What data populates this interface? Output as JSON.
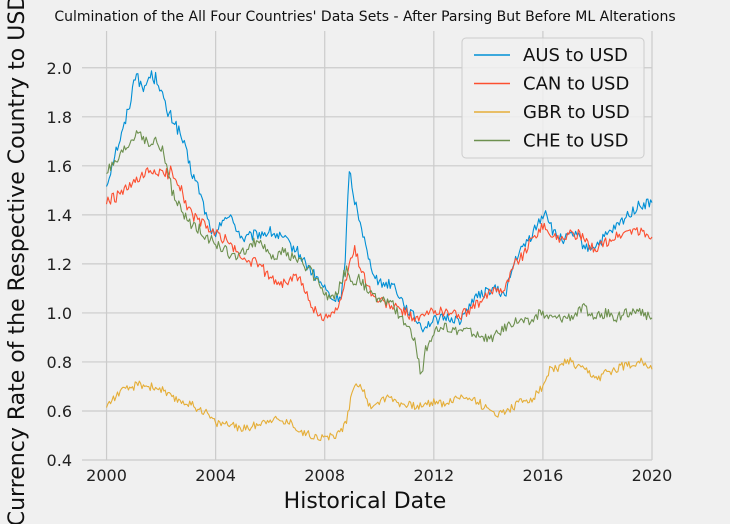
{
  "chart_data": {
    "type": "line",
    "title": "Culmination of the All Four Countries' Data Sets - After Parsing But Before ML Alterations",
    "xlabel": "Historical Date",
    "ylabel": "Currency Rate of the Respective Country to USD",
    "xlim": [
      1999.1,
      2020.0
    ],
    "ylim": [
      0.4,
      2.15
    ],
    "xticks": [
      "2000",
      "2004",
      "2008",
      "2012",
      "2016",
      "2020"
    ],
    "yticks": [
      "0.4",
      "0.6",
      "0.8",
      "1.0",
      "1.2",
      "1.4",
      "1.6",
      "1.8",
      "2.0"
    ],
    "grid": true,
    "legend_position": "top-right",
    "series": [
      {
        "name": "AUS to USD",
        "color": "#008fd5",
        "x": [
          2000.0,
          2000.3,
          2000.6,
          2000.9,
          2001.1,
          2001.3,
          2001.6,
          2001.9,
          2002.2,
          2002.5,
          2002.8,
          2003.1,
          2003.4,
          2003.7,
          2004.0,
          2004.3,
          2004.6,
          2005.0,
          2005.5,
          2006.0,
          2006.5,
          2007.0,
          2007.5,
          2008.0,
          2008.3,
          2008.6,
          2008.75,
          2008.9,
          2009.0,
          2009.3,
          2009.6,
          2010.0,
          2010.5,
          2011.0,
          2011.3,
          2011.6,
          2012.0,
          2012.5,
          2013.0,
          2013.4,
          2013.8,
          2014.2,
          2014.6,
          2015.0,
          2015.3,
          2015.6,
          2015.9,
          2016.1,
          2016.4,
          2016.8,
          2017.2,
          2017.6,
          2018.0,
          2018.4,
          2018.8,
          2019.2,
          2019.6,
          2020.0
        ],
        "values": [
          1.52,
          1.65,
          1.74,
          1.88,
          2.0,
          1.9,
          1.97,
          1.95,
          1.82,
          1.78,
          1.7,
          1.58,
          1.5,
          1.38,
          1.3,
          1.4,
          1.38,
          1.3,
          1.32,
          1.33,
          1.3,
          1.25,
          1.17,
          1.1,
          1.05,
          1.07,
          1.2,
          1.6,
          1.5,
          1.38,
          1.22,
          1.12,
          1.12,
          1.02,
          0.98,
          0.94,
          0.97,
          0.98,
          0.97,
          1.05,
          1.08,
          1.1,
          1.07,
          1.22,
          1.27,
          1.32,
          1.38,
          1.42,
          1.32,
          1.3,
          1.32,
          1.26,
          1.28,
          1.32,
          1.36,
          1.41,
          1.44,
          1.45
        ]
      },
      {
        "name": "CAN to USD",
        "color": "#fc4f30",
        "x": [
          2000.0,
          2000.3,
          2000.6,
          2000.9,
          2001.2,
          2001.5,
          2001.8,
          2002.1,
          2002.4,
          2002.7,
          2003.0,
          2003.3,
          2003.6,
          2004.0,
          2004.4,
          2004.8,
          2005.2,
          2005.6,
          2006.0,
          2006.5,
          2007.0,
          2007.4,
          2007.8,
          2008.0,
          2008.3,
          2008.6,
          2008.9,
          2009.1,
          2009.4,
          2009.8,
          2010.2,
          2010.6,
          2011.0,
          2011.4,
          2011.8,
          2012.2,
          2012.6,
          2013.0,
          2013.4,
          2013.8,
          2014.2,
          2014.6,
          2015.0,
          2015.3,
          2015.6,
          2015.9,
          2016.2,
          2016.5,
          2016.9,
          2017.3,
          2017.7,
          2018.1,
          2018.5,
          2018.9,
          2019.3,
          2019.7,
          2020.0
        ],
        "values": [
          1.45,
          1.47,
          1.49,
          1.52,
          1.54,
          1.57,
          1.58,
          1.56,
          1.58,
          1.52,
          1.42,
          1.38,
          1.36,
          1.32,
          1.3,
          1.24,
          1.21,
          1.2,
          1.14,
          1.12,
          1.15,
          1.06,
          0.98,
          0.99,
          1.0,
          1.04,
          1.2,
          1.26,
          1.16,
          1.06,
          1.04,
          1.02,
          1.0,
          0.97,
          1.0,
          1.01,
          1.0,
          0.99,
          1.02,
          1.05,
          1.1,
          1.1,
          1.21,
          1.24,
          1.3,
          1.35,
          1.34,
          1.3,
          1.32,
          1.32,
          1.27,
          1.27,
          1.3,
          1.32,
          1.34,
          1.32,
          1.31
        ]
      },
      {
        "name": "GBR to USD",
        "color": "#e5ae38",
        "x": [
          2000.0,
          2000.4,
          2000.8,
          2001.2,
          2001.6,
          2002.0,
          2002.4,
          2002.8,
          2003.2,
          2003.6,
          2004.0,
          2004.4,
          2004.8,
          2005.2,
          2005.6,
          2006.0,
          2006.4,
          2006.8,
          2007.2,
          2007.6,
          2008.0,
          2008.4,
          2008.8,
          2009.0,
          2009.3,
          2009.6,
          2010.0,
          2010.4,
          2010.8,
          2011.2,
          2011.6,
          2012.0,
          2012.4,
          2012.8,
          2013.2,
          2013.6,
          2014.0,
          2014.4,
          2014.8,
          2015.2,
          2015.6,
          2016.0,
          2016.3,
          2016.6,
          2016.9,
          2017.2,
          2017.6,
          2018.0,
          2018.4,
          2018.8,
          2019.2,
          2019.6,
          2020.0
        ],
        "values": [
          0.62,
          0.67,
          0.69,
          0.71,
          0.7,
          0.69,
          0.65,
          0.64,
          0.62,
          0.6,
          0.55,
          0.55,
          0.53,
          0.53,
          0.55,
          0.57,
          0.56,
          0.55,
          0.51,
          0.5,
          0.49,
          0.5,
          0.55,
          0.69,
          0.72,
          0.62,
          0.64,
          0.66,
          0.63,
          0.62,
          0.62,
          0.64,
          0.63,
          0.65,
          0.66,
          0.64,
          0.6,
          0.59,
          0.61,
          0.64,
          0.65,
          0.7,
          0.78,
          0.77,
          0.81,
          0.78,
          0.76,
          0.73,
          0.76,
          0.78,
          0.79,
          0.81,
          0.77
        ]
      },
      {
        "name": "CHE to USD",
        "color": "#6d904f",
        "x": [
          2000.0,
          2000.3,
          2000.6,
          2000.9,
          2001.2,
          2001.5,
          2001.8,
          2002.1,
          2002.4,
          2002.7,
          2003.0,
          2003.3,
          2003.6,
          2004.0,
          2004.4,
          2004.8,
          2005.2,
          2005.6,
          2006.0,
          2006.5,
          2007.0,
          2007.4,
          2007.8,
          2008.2,
          2008.5,
          2008.8,
          2009.0,
          2009.3,
          2009.6,
          2010.0,
          2010.4,
          2010.8,
          2011.0,
          2011.3,
          2011.55,
          2011.7,
          2012.0,
          2012.4,
          2012.8,
          2013.2,
          2013.6,
          2014.0,
          2014.4,
          2014.8,
          2015.1,
          2015.5,
          2015.9,
          2016.3,
          2016.7,
          2017.1,
          2017.5,
          2017.9,
          2018.3,
          2018.7,
          2019.1,
          2019.5,
          2019.8,
          2020.0
        ],
        "values": [
          1.58,
          1.6,
          1.65,
          1.7,
          1.75,
          1.68,
          1.7,
          1.65,
          1.5,
          1.42,
          1.37,
          1.35,
          1.32,
          1.28,
          1.25,
          1.22,
          1.27,
          1.3,
          1.22,
          1.25,
          1.22,
          1.18,
          1.12,
          1.05,
          1.1,
          1.18,
          1.12,
          1.14,
          1.08,
          1.05,
          1.05,
          0.98,
          0.95,
          0.88,
          0.74,
          0.85,
          0.92,
          0.94,
          0.93,
          0.93,
          0.91,
          0.89,
          0.92,
          0.96,
          0.97,
          0.96,
          1.0,
          0.98,
          0.98,
          0.99,
          1.02,
          0.98,
          1.0,
          0.98,
          1.0,
          1.0,
          0.99,
          0.98
        ]
      }
    ]
  }
}
